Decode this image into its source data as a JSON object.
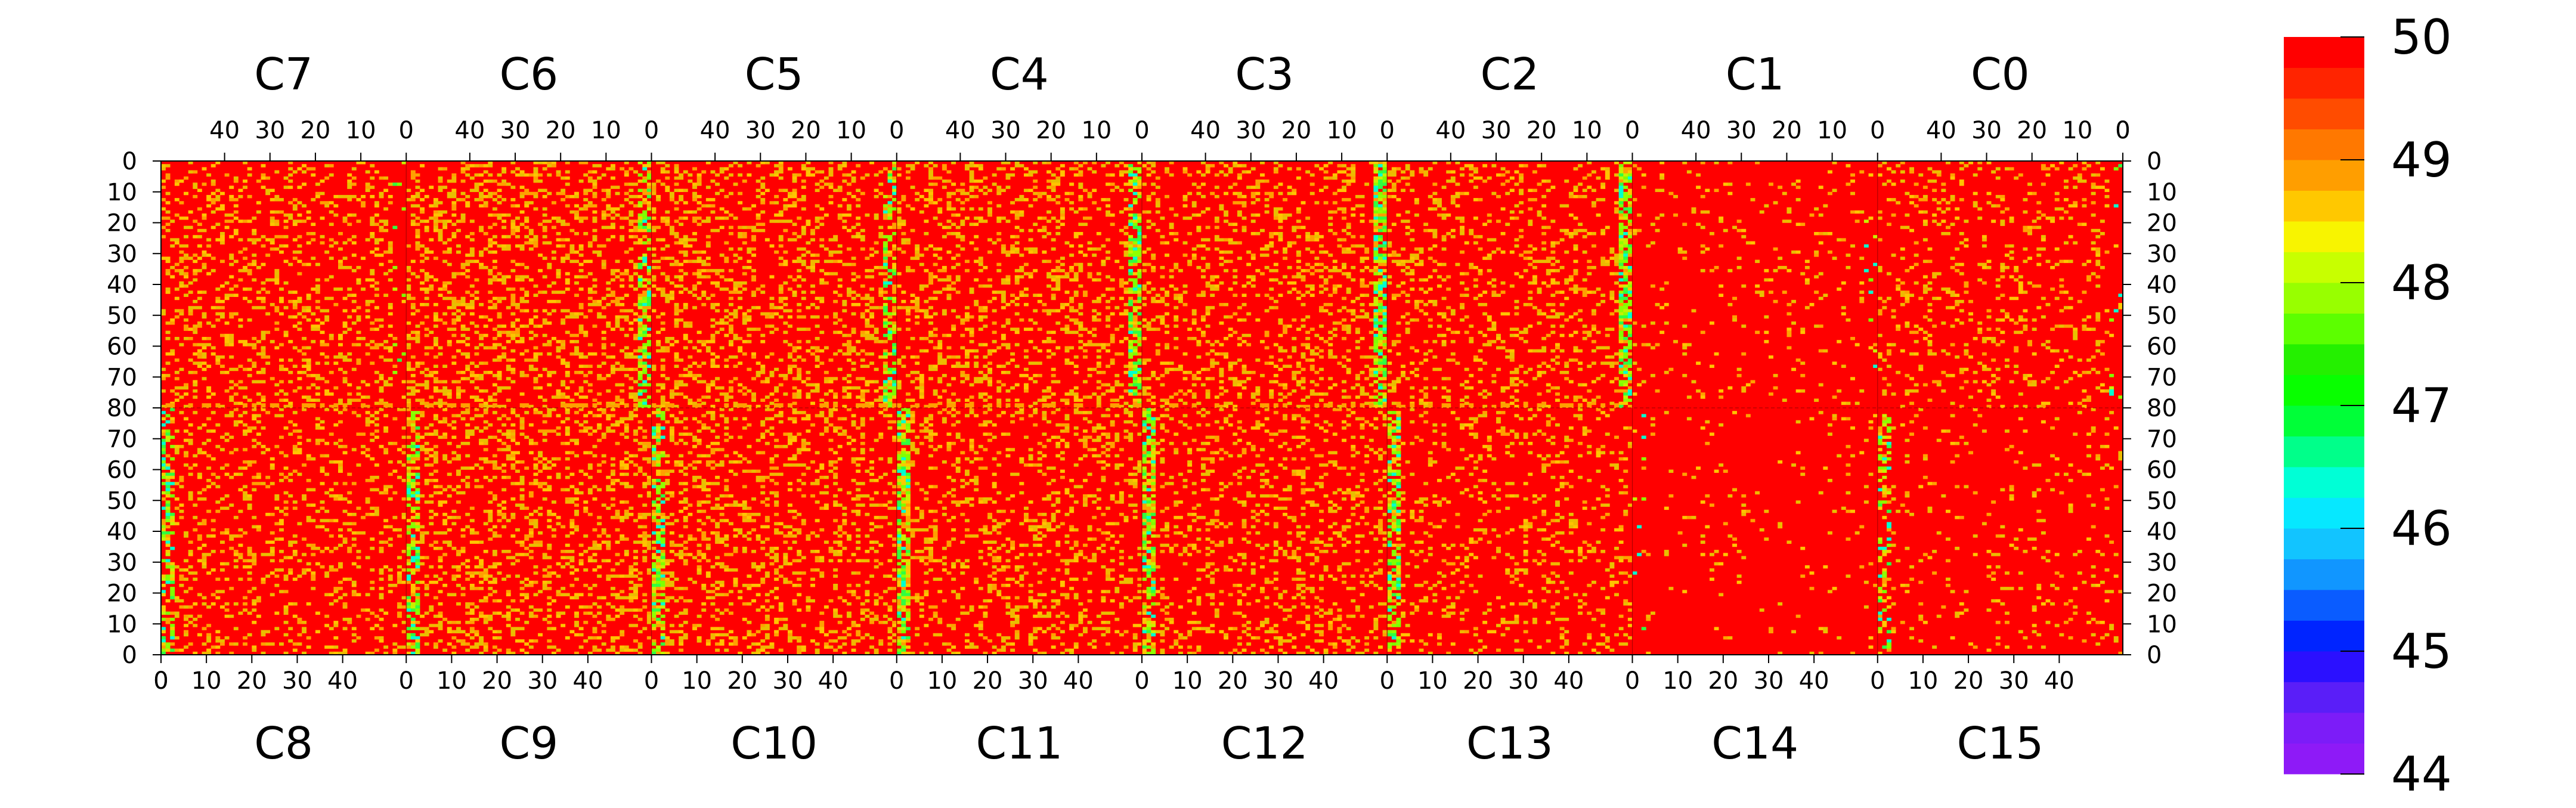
{
  "chart_data": {
    "type": "heatmap",
    "title": "",
    "xlabel": "",
    "ylabel": "",
    "color_scale": {
      "min": 44,
      "max": 50,
      "ticks": [
        44,
        45,
        46,
        47,
        48,
        49,
        50
      ],
      "colors": [
        "#8e1af7",
        "#7c1cf8",
        "#5a1ef8",
        "#2b10ff",
        "#0024ff",
        "#0a5cff",
        "#1196ff",
        "#12c4ff",
        "#06e8ff",
        "#00ffd6",
        "#00ff8a",
        "#00ff38",
        "#08ff00",
        "#24f000",
        "#5cff00",
        "#98ff00",
        "#c8ff00",
        "#f8f400",
        "#ffc800",
        "#ff9e00",
        "#ff7800",
        "#ff4c00",
        "#ff2400",
        "#ff0000"
      ]
    },
    "chips_top": [
      {
        "name": "C7",
        "hot_rows": true,
        "edge_density": 0.06,
        "fill_density": 0.2
      },
      {
        "name": "C6",
        "hot_rows": true,
        "edge_density": 0.6,
        "fill_density": 0.26
      },
      {
        "name": "C5",
        "hot_rows": true,
        "edge_density": 0.6,
        "fill_density": 0.24
      },
      {
        "name": "C4",
        "hot_rows": true,
        "edge_density": 0.7,
        "fill_density": 0.22
      },
      {
        "name": "C3",
        "hot_rows": true,
        "edge_density": 0.75,
        "fill_density": 0.2
      },
      {
        "name": "C2",
        "hot_rows": true,
        "edge_density": 0.75,
        "fill_density": 0.18
      },
      {
        "name": "C1",
        "hot_rows": false,
        "edge_density": 0.05,
        "fill_density": 0.06
      },
      {
        "name": "C0",
        "hot_rows": false,
        "edge_density": 0.05,
        "fill_density": 0.14
      }
    ],
    "chips_bottom": [
      {
        "name": "C8",
        "edge_density": 0.5,
        "fill_density": 0.18
      },
      {
        "name": "C9",
        "edge_density": 0.6,
        "fill_density": 0.24
      },
      {
        "name": "C10",
        "edge_density": 0.65,
        "fill_density": 0.22
      },
      {
        "name": "C11",
        "edge_density": 0.8,
        "fill_density": 0.2
      },
      {
        "name": "C12",
        "edge_density": 0.75,
        "fill_density": 0.18
      },
      {
        "name": "C13",
        "edge_density": 0.65,
        "fill_density": 0.14
      },
      {
        "name": "C14",
        "edge_density": 0.05,
        "fill_density": 0.03
      },
      {
        "name": "C15",
        "edge_density": 0.35,
        "fill_density": 0.06
      }
    ],
    "chip_x_ticks": [
      0,
      10,
      20,
      30,
      40
    ],
    "chip_columns": 54,
    "half_rows": 80,
    "y_ticks": [
      0,
      10,
      20,
      30,
      40,
      50,
      60,
      70,
      80,
      70,
      60,
      50,
      40,
      30,
      20,
      10,
      0
    ],
    "background_value": 50,
    "grid": false,
    "legend": "right"
  }
}
